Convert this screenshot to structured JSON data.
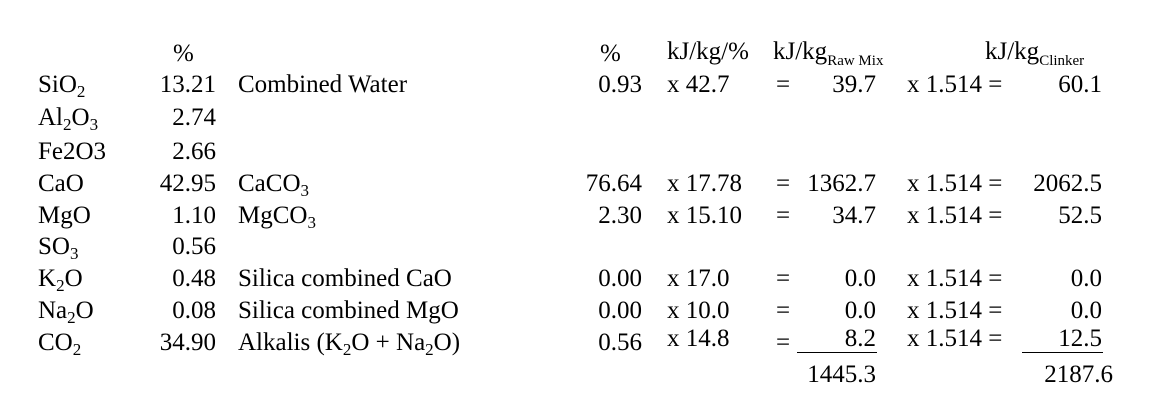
{
  "headers": {
    "pct_left": "%",
    "pct_right": "%",
    "kj_per_pct": "kJ/kg/%",
    "kj_raw_base": "kJ/kg",
    "kj_raw_sub": "Raw Mix",
    "kj_clinker_base": "kJ/kg",
    "kj_clinker_sub": "Clinker"
  },
  "oxides": [
    {
      "a": "SiO",
      "sub": "2",
      "b": "",
      "value": "13.21"
    },
    {
      "a": "Al",
      "sub": "2",
      "b": "O",
      "sub2": "3",
      "value": "2.74"
    },
    {
      "a": "Fe2O3",
      "value": "2.66"
    },
    {
      "a": "CaO",
      "value": "42.95"
    },
    {
      "a": "MgO",
      "value": "1.10"
    },
    {
      "a": "SO",
      "sub": "3",
      "value": "0.56"
    },
    {
      "a": "K",
      "sub": "2",
      "b": "O",
      "value": "0.48"
    },
    {
      "a": "Na",
      "sub": "2",
      "b": "O",
      "value": "0.08"
    },
    {
      "a": "CO",
      "sub": "2",
      "value": "34.90"
    }
  ],
  "components": [
    {
      "name_a": "Combined Water",
      "pct": "0.93",
      "factor": "x 42.7",
      "eq": "=",
      "raw": "39.7",
      "mult": "x 1.514 =",
      "clinker": "60.1"
    },
    {
      "name_a": "CaCO",
      "name_sub": "3",
      "pct": "76.64",
      "factor": "x 17.78",
      "eq": "=",
      "raw": "1362.7",
      "mult": "x 1.514 =",
      "clinker": "2062.5"
    },
    {
      "name_a": "MgCO",
      "name_sub": "3",
      "pct": "2.30",
      "factor": "x 15.10",
      "eq": "=",
      "raw": "34.7",
      "mult": "x 1.514 =",
      "clinker": "52.5"
    },
    {
      "name_a": "Silica combined CaO",
      "pct": "0.00",
      "factor": "x 17.0",
      "eq": "=",
      "raw": "0.0",
      "mult": "x 1.514 =",
      "clinker": "0.0"
    },
    {
      "name_a": "Silica combined MgO",
      "pct": "0.00",
      "factor": "x 10.0",
      "eq": "=",
      "raw": "0.0",
      "mult": "x 1.514 =",
      "clinker": "0.0"
    },
    {
      "name_a": "Alkalis (K",
      "name_sub": "2",
      "name_b": "O + Na",
      "name_sub2": "2",
      "name_c": "O)",
      "pct": "0.56",
      "factor": "x 14.8",
      "eq": "=",
      "raw": "8.2",
      "mult": "x 1.514 =",
      "clinker": "12.5"
    }
  ],
  "totals": {
    "raw": "1445.3",
    "clinker": "2187.6"
  }
}
